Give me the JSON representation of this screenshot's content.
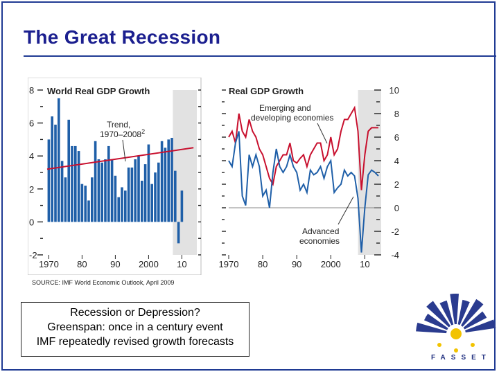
{
  "slide": {
    "title": "The Great Recession",
    "source": "SOURCE: IMF World Economic Outlook, April 2009",
    "notes": [
      "Recession or Depression?",
      "Greenspan: once in a century event",
      "IMF repeatedly revised growth forecasts"
    ],
    "logo_text": "FASSET"
  },
  "colors": {
    "title": "#1b1f8f",
    "bars": "#1f5fa8",
    "trend": "#c8102e",
    "emerging": "#c8102e",
    "advanced": "#1f5fa8",
    "shade": "#e2e2e2",
    "logo_blue": "#2a3b8f",
    "logo_yellow": "#f2c300"
  },
  "chart_data": [
    {
      "type": "bar",
      "title": "World Real GDP Growth",
      "annotation": "Trend, 1970–2008",
      "annotation_superscript": "2",
      "x": [
        1970,
        1971,
        1972,
        1973,
        1974,
        1975,
        1976,
        1977,
        1978,
        1979,
        1980,
        1981,
        1982,
        1983,
        1984,
        1985,
        1986,
        1987,
        1988,
        1989,
        1990,
        1991,
        1992,
        1993,
        1994,
        1995,
        1996,
        1997,
        1998,
        1999,
        2000,
        2001,
        2002,
        2003,
        2004,
        2005,
        2006,
        2007,
        2008,
        2009,
        2010,
        2011,
        2012,
        2013,
        2014
      ],
      "values": [
        5.0,
        6.4,
        5.9,
        7.5,
        3.7,
        2.7,
        6.2,
        4.6,
        4.6,
        4.3,
        2.3,
        2.2,
        1.3,
        2.7,
        4.9,
        3.8,
        3.6,
        3.8,
        4.6,
        3.8,
        2.8,
        1.5,
        2.1,
        1.9,
        3.3,
        3.3,
        3.8,
        4.0,
        2.5,
        3.5,
        4.7,
        2.3,
        3.0,
        3.6,
        4.9,
        4.5,
        5.0,
        5.1,
        3.1,
        -1.3,
        1.9,
        null,
        null,
        null,
        null
      ],
      "trend": {
        "x": [
          1970,
          2014
        ],
        "y": [
          3.2,
          4.5
        ]
      },
      "ylim": [
        -2,
        8
      ],
      "yticks": [
        -2,
        0,
        2,
        4,
        6,
        8
      ],
      "xtick_labels": [
        "1970",
        "80",
        "90",
        "2000",
        "10"
      ],
      "xtick_values": [
        1970,
        1980,
        1990,
        2000,
        2010
      ],
      "shaded_from": 2008
    },
    {
      "type": "line",
      "title": "Real GDP Growth",
      "x": [
        1970,
        1971,
        1972,
        1973,
        1974,
        1975,
        1976,
        1977,
        1978,
        1979,
        1980,
        1981,
        1982,
        1983,
        1984,
        1985,
        1986,
        1987,
        1988,
        1989,
        1990,
        1991,
        1992,
        1993,
        1994,
        1995,
        1996,
        1997,
        1998,
        1999,
        2000,
        2001,
        2002,
        2003,
        2004,
        2005,
        2006,
        2007,
        2008,
        2009,
        2010,
        2011,
        2012,
        2013,
        2014
      ],
      "series": [
        {
          "name": "Emerging and developing economies",
          "values": [
            6.0,
            6.5,
            5.5,
            8.0,
            6.5,
            6.0,
            7.5,
            6.5,
            6.0,
            5.0,
            4.5,
            3.5,
            2.5,
            2.0,
            3.5,
            4.0,
            4.5,
            4.5,
            5.5,
            4.0,
            3.8,
            4.2,
            4.5,
            3.5,
            4.5,
            5.0,
            5.5,
            5.5,
            4.0,
            4.5,
            6.0,
            4.5,
            5.0,
            6.5,
            7.5,
            7.5,
            8.0,
            8.5,
            6.5,
            1.5,
            4.5,
            6.5,
            6.8,
            6.8,
            6.8
          ]
        },
        {
          "name": "Advanced economies",
          "values": [
            4.0,
            3.5,
            5.5,
            6.5,
            1.0,
            0.2,
            4.5,
            3.5,
            4.5,
            3.5,
            1.0,
            1.5,
            0.0,
            3.0,
            5.0,
            3.5,
            3.0,
            3.5,
            4.5,
            3.5,
            3.0,
            1.5,
            2.0,
            1.3,
            3.2,
            2.8,
            3.0,
            3.5,
            2.5,
            3.5,
            4.0,
            1.3,
            1.7,
            2.0,
            3.2,
            2.7,
            3.0,
            2.7,
            0.8,
            -3.8,
            0.0,
            2.8,
            3.2,
            3.0,
            2.7
          ]
        }
      ],
      "labels": [
        "Emerging and",
        "developing economies",
        "Advanced",
        "economies"
      ],
      "ylim": [
        -4,
        10
      ],
      "yticks": [
        -4,
        -2,
        0,
        2,
        4,
        6,
        8,
        10
      ],
      "xtick_labels": [
        "1970",
        "80",
        "90",
        "2000",
        "10"
      ],
      "xtick_values": [
        1970,
        1980,
        1990,
        2000,
        2010
      ],
      "shaded_from": 2008
    }
  ]
}
